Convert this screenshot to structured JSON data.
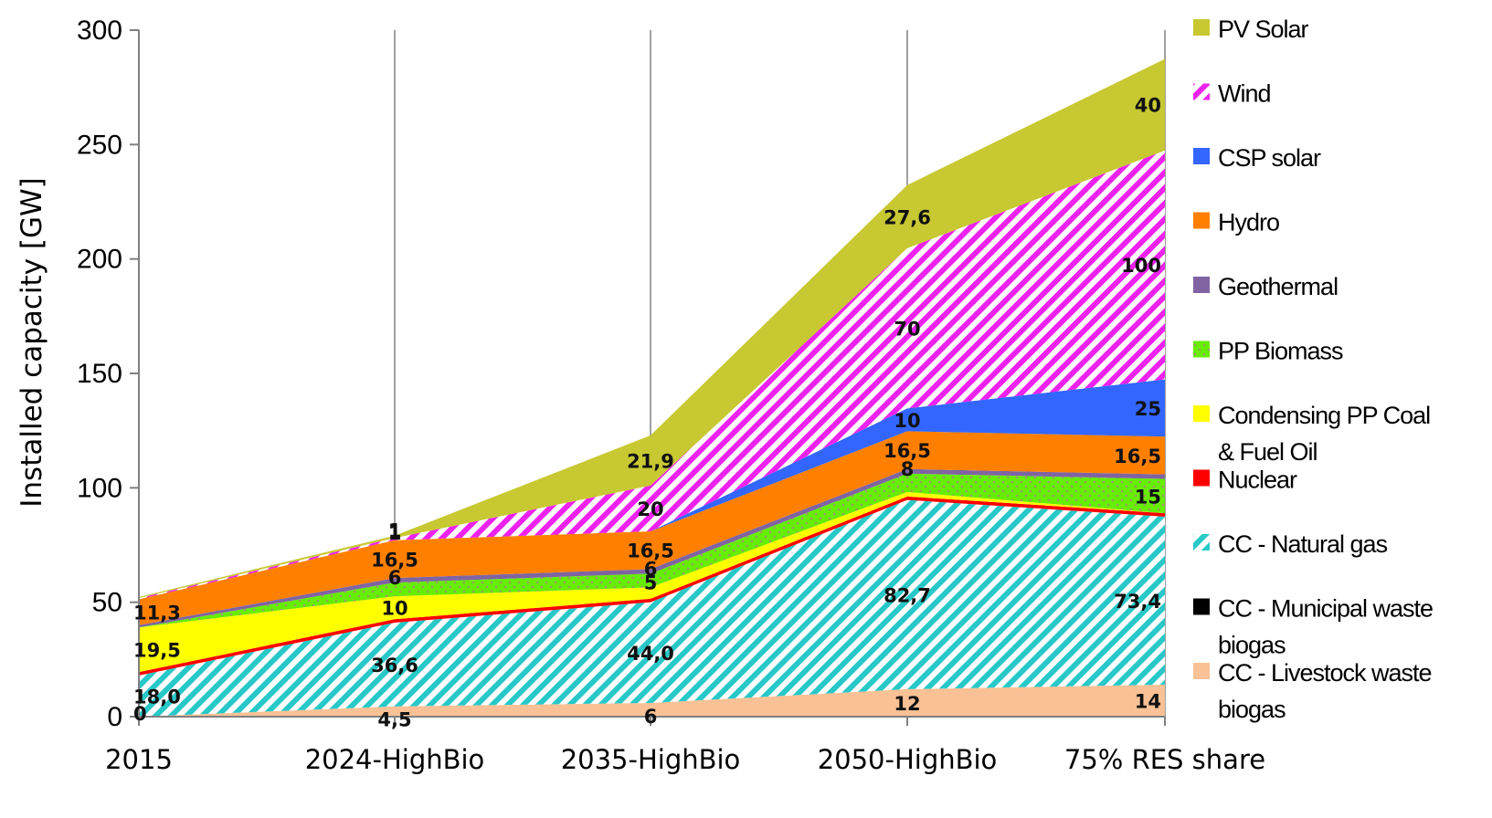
{
  "chart_data": {
    "type": "area",
    "stacked": true,
    "title": "",
    "xlabel": "",
    "ylabel": "Installed capacity [GW]",
    "ylim": [
      0,
      300
    ],
    "yticks": [
      0,
      50,
      100,
      150,
      200,
      250,
      300
    ],
    "grid": "vertical",
    "legend_position": "right",
    "categories": [
      "2015",
      "2024-HighBio",
      "2035-HighBio",
      "2050-HighBio",
      "75% RES share"
    ],
    "series": [
      {
        "name": "CC - Livestock waste\nbiogas",
        "color": "#F9C195",
        "pattern": "solid",
        "values": [
          0,
          4.5,
          6,
          12,
          14
        ],
        "labels": [
          "0",
          "4,5",
          "6",
          "12",
          "14"
        ]
      },
      {
        "name": "CC - Municipal waste\nbiogas",
        "color": "#000000",
        "pattern": "solid",
        "values": [
          0,
          0,
          0,
          0,
          0
        ],
        "labels": [
          "",
          "",
          "",
          "",
          ""
        ]
      },
      {
        "name": "CC - Natural gas",
        "color": "#28C8C8",
        "pattern": "diagonal",
        "values": [
          18.0,
          36.6,
          44.0,
          82.7,
          73.4
        ],
        "labels": [
          "18,0",
          "36,6",
          "44,0",
          "82,7",
          "73,4"
        ]
      },
      {
        "name": "Nuclear",
        "color": "#FF0000",
        "pattern": "solid",
        "values": [
          1.5,
          1.5,
          1.5,
          1.5,
          1.5
        ],
        "labels": [
          "",
          "",
          "",
          "",
          ""
        ]
      },
      {
        "name": "Condensing PP Coal\n& Fuel Oil",
        "color": "#FFFF00",
        "pattern": "solid",
        "values": [
          19.5,
          10,
          5,
          2,
          0
        ],
        "labels": [
          "19,5",
          "10",
          "5",
          "",
          ""
        ]
      },
      {
        "name": "PP Biomass",
        "color": "#66EE00",
        "pattern": "dots",
        "values": [
          0,
          6,
          6,
          8,
          15
        ],
        "labels": [
          "",
          "6",
          "6",
          "8",
          "15"
        ]
      },
      {
        "name": "Geothermal",
        "color": "#8064A2",
        "pattern": "solid",
        "values": [
          1,
          2,
          2,
          2,
          2
        ],
        "labels": [
          "",
          "",
          "",
          "",
          ""
        ]
      },
      {
        "name": "Hydro",
        "color": "#FF8000",
        "pattern": "solid",
        "values": [
          11.3,
          16.5,
          16.5,
          16.5,
          16.5
        ],
        "labels": [
          "11,3",
          "16,5",
          "16,5",
          "16,5",
          "16,5"
        ]
      },
      {
        "name": "CSP solar",
        "color": "#3366FF",
        "pattern": "solid",
        "values": [
          0,
          0,
          0,
          10,
          25
        ],
        "labels": [
          "",
          "",
          "",
          "10",
          "25"
        ]
      },
      {
        "name": "Wind",
        "color": "#EE22EE",
        "pattern": "diagonal",
        "values": [
          0.5,
          1,
          20,
          70,
          100
        ],
        "labels": [
          "",
          "1",
          "20",
          "70",
          "100"
        ]
      },
      {
        "name": "PV Solar",
        "color": "#C8C832",
        "pattern": "solid",
        "values": [
          0.5,
          1,
          21.9,
          27.6,
          40
        ],
        "labels": [
          "",
          "1",
          "21,9",
          "27,6",
          "40"
        ]
      }
    ]
  }
}
